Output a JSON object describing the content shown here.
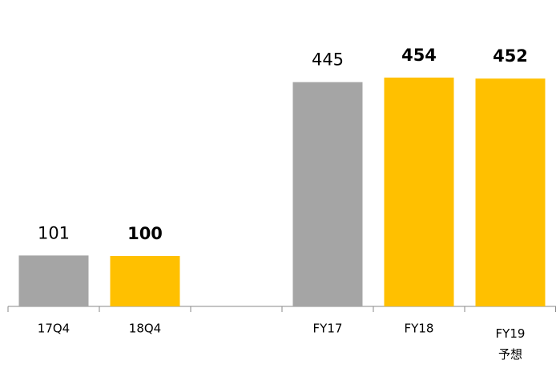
{
  "chart_data": {
    "type": "bar",
    "categories": [
      "17Q4",
      "18Q4",
      null,
      "FY17",
      "FY18",
      "FY19 予想"
    ],
    "values": [
      101,
      100,
      null,
      445,
      454,
      452
    ],
    "colors": [
      "#a5a5a5",
      "#ffc000",
      null,
      "#a5a5a5",
      "#ffc000",
      "#ffc000"
    ],
    "label_bold": [
      false,
      true,
      false,
      false,
      true,
      true
    ],
    "ylim": [
      0,
      600
    ]
  }
}
